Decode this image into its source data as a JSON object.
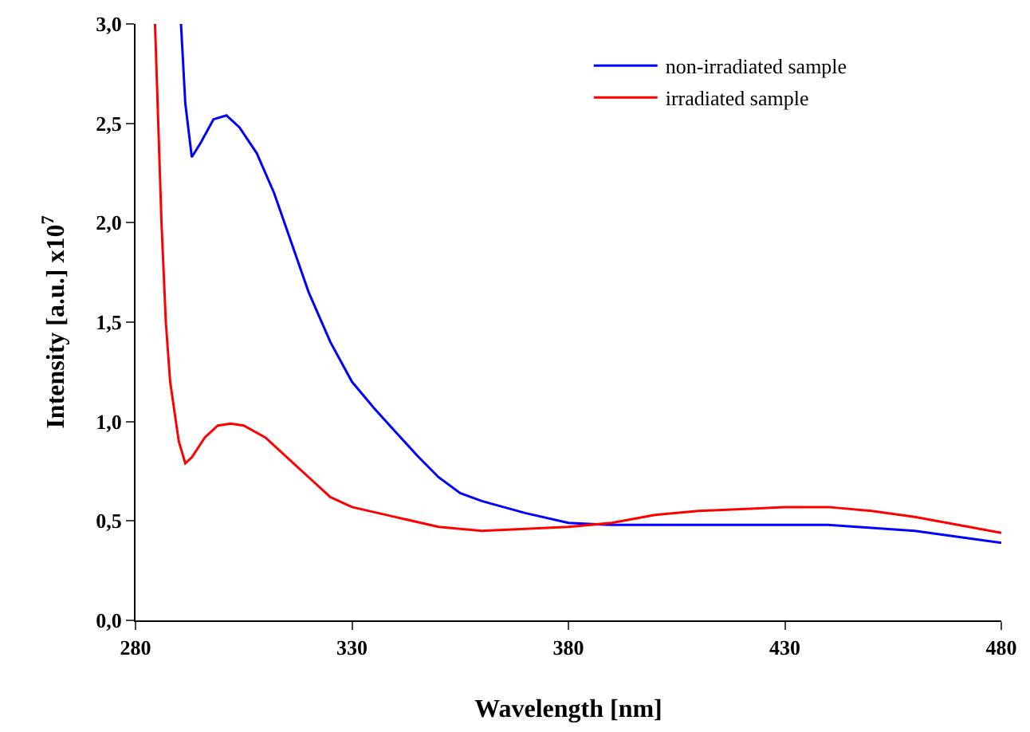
{
  "chart_data": {
    "type": "line",
    "xlabel": "Wavelength [nm]",
    "ylabel": "Intensity [a.u.] x10$^{7}$",
    "xlim": [
      280,
      480
    ],
    "xticks": [
      280,
      330,
      380,
      430,
      480
    ],
    "ylim": [
      0,
      3
    ],
    "yticks": [
      {
        "value": 0,
        "label": "0,0"
      },
      {
        "value": 0.5,
        "label": "0,5"
      },
      {
        "value": 1,
        "label": "1,0"
      },
      {
        "value": 1.5,
        "label": "1,5"
      },
      {
        "value": 2,
        "label": "2,0"
      },
      {
        "value": 2.5,
        "label": "2,5"
      },
      {
        "value": 3,
        "label": "3,0"
      }
    ],
    "legend": "top right",
    "marker": "none",
    "line_style": "solid",
    "series": [
      {
        "name": "non-irradiated sample",
        "color": "#0000ff",
        "x": [
          290.5,
          291.5,
          293,
          295,
          298,
          301,
          304,
          308,
          312,
          316,
          320,
          325,
          330,
          335,
          340,
          345,
          350,
          355,
          360,
          370,
          380,
          390,
          400,
          420,
          440,
          460,
          470,
          480
        ],
        "values": [
          3.0,
          2.6,
          2.33,
          2.4,
          2.52,
          2.54,
          2.48,
          2.35,
          2.15,
          1.9,
          1.65,
          1.4,
          1.2,
          1.07,
          0.95,
          0.83,
          0.72,
          0.64,
          0.6,
          0.54,
          0.49,
          0.48,
          0.48,
          0.48,
          0.48,
          0.45,
          0.42,
          0.39
        ]
      },
      {
        "name": "irradiated sample",
        "color": "#ff0000",
        "x": [
          284.5,
          286,
          287,
          288,
          290,
          291.5,
          293,
          296,
          299,
          302,
          305,
          310,
          315,
          320,
          325,
          330,
          340,
          350,
          360,
          370,
          380,
          390,
          400,
          410,
          420,
          430,
          440,
          450,
          460,
          470,
          480
        ],
        "values": [
          3.0,
          2.0,
          1.5,
          1.2,
          0.9,
          0.79,
          0.82,
          0.92,
          0.98,
          0.99,
          0.98,
          0.92,
          0.82,
          0.72,
          0.62,
          0.57,
          0.52,
          0.47,
          0.45,
          0.46,
          0.47,
          0.49,
          0.53,
          0.55,
          0.56,
          0.57,
          0.57,
          0.55,
          0.52,
          0.48,
          0.44
        ]
      }
    ]
  }
}
